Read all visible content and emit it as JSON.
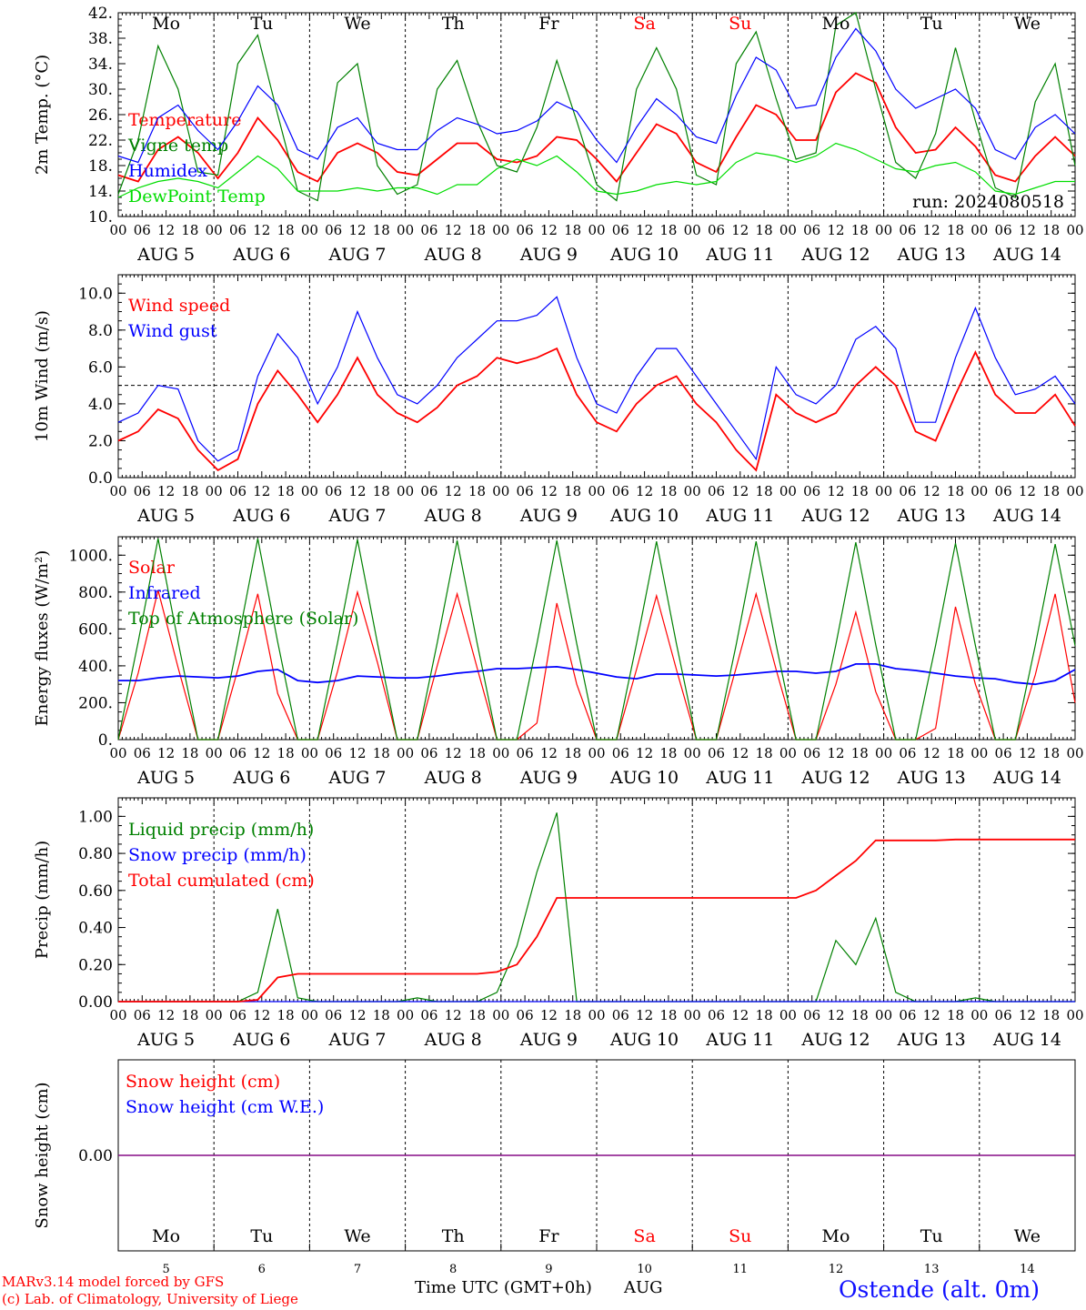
{
  "footer": {
    "credit_line1": "MARv3.14 model forced by GFS",
    "credit_line2": "(c) Lab. of Climatology, University of Liege",
    "x_axis_title": "Time UTC (GMT+0h)",
    "month": "AUG",
    "station": "Ostende (alt. 0m)"
  },
  "colors": {
    "red": "#ff0000",
    "blue": "#0000ff",
    "green": "#008000",
    "lightgreen": "#00dd00",
    "purple": "#800080",
    "weekend": "#ff0000",
    "weekday": "#000000"
  },
  "chart_data": [
    {
      "type": "line",
      "ylabel": "2m Temp. (°C)",
      "ylim": [
        10,
        42
      ],
      "y_ticks": [
        "42.",
        "38.",
        "34.",
        "30.",
        "26.",
        "22.",
        "18.",
        "14.",
        "10."
      ],
      "run_label": "run: 2024080518",
      "day_labels": [
        "Mo",
        "Tu",
        "We",
        "Th",
        "Fr",
        "Sa",
        "Su",
        "Mo",
        "Tu",
        "We"
      ],
      "weekend_flags": [
        false,
        false,
        false,
        false,
        false,
        true,
        true,
        false,
        false,
        false
      ],
      "date_labels": [
        "AUG  5",
        "AUG  6",
        "AUG  7",
        "AUG  8",
        "AUG  9",
        "AUG 10",
        "AUG 11",
        "AUG 12",
        "AUG 13",
        "AUG 14"
      ],
      "hour_ticks": [
        "00",
        "06",
        "12",
        "18"
      ],
      "x_hours_step": 6,
      "series": [
        {
          "name": "Temperature",
          "color": "#ff0000",
          "values": [
            16.5,
            15.5,
            20.5,
            22.5,
            20.0,
            16.0,
            20.0,
            25.5,
            22.0,
            17.0,
            15.5,
            20.0,
            21.5,
            20.0,
            17.0,
            16.5,
            19.0,
            21.5,
            21.5,
            19.0,
            18.5,
            19.5,
            22.5,
            22.0,
            19.0,
            15.5,
            20.0,
            24.5,
            23.0,
            18.5,
            17.0,
            22.5,
            27.5,
            26.0,
            22.0,
            22.0,
            29.5,
            32.5,
            31.0,
            24.0,
            20.0,
            20.5,
            24.0,
            21.0,
            16.5,
            15.5,
            19.5,
            22.5,
            19.5
          ]
        },
        {
          "name": "Vigne temp",
          "color": "#008000",
          "values": [
            13.5,
            22.0,
            36.8,
            30.0,
            17.0,
            16.5,
            34.0,
            38.5,
            26.0,
            14.0,
            12.5,
            31.0,
            34.0,
            18.0,
            13.5,
            15.0,
            30.0,
            34.5,
            25.0,
            18.0,
            17.0,
            24.0,
            34.5,
            25.0,
            15.0,
            12.5,
            30.0,
            36.5,
            30.0,
            16.5,
            15.0,
            34.0,
            39.0,
            28.5,
            19.0,
            20.0,
            40.0,
            42.0,
            30.0,
            18.5,
            16.0,
            23.0,
            36.5,
            25.0,
            14.5,
            13.0,
            28.0,
            34.0,
            18.0
          ]
        },
        {
          "name": "Humidex",
          "color": "#0000ff",
          "values": [
            19.5,
            18.5,
            25.5,
            27.5,
            23.5,
            20.5,
            25.0,
            30.5,
            27.5,
            20.5,
            19.0,
            24.0,
            25.5,
            21.5,
            20.5,
            20.5,
            23.5,
            25.5,
            24.5,
            23.0,
            23.5,
            25.0,
            28.0,
            26.5,
            22.0,
            18.5,
            24.0,
            28.5,
            26.0,
            22.5,
            21.5,
            29.0,
            35.0,
            33.0,
            27.0,
            27.5,
            35.0,
            39.5,
            36.0,
            30.0,
            27.0,
            28.5,
            30.0,
            27.0,
            20.5,
            19.0,
            24.0,
            26.0,
            23.0
          ]
        },
        {
          "name": "DewPoint Temp",
          "color": "#00dd00",
          "values": [
            13.0,
            14.5,
            15.5,
            16.0,
            15.5,
            14.5,
            17.0,
            19.5,
            17.5,
            14.0,
            14.0,
            14.0,
            14.5,
            14.0,
            14.5,
            14.5,
            13.5,
            15.0,
            15.0,
            17.5,
            19.0,
            18.0,
            19.5,
            17.0,
            14.0,
            13.5,
            14.0,
            15.0,
            15.5,
            15.0,
            15.5,
            18.5,
            20.0,
            19.5,
            18.5,
            19.5,
            21.5,
            20.5,
            19.0,
            17.5,
            17.0,
            18.0,
            18.5,
            17.0,
            14.0,
            13.5,
            14.5,
            15.5,
            15.5
          ]
        }
      ]
    },
    {
      "type": "line",
      "ylabel": "10m Wind (m/s)",
      "ylim": [
        0,
        11
      ],
      "y_ticks": [
        "10.0",
        "8.0",
        "6.0",
        "4.0",
        "2.0",
        "0.0"
      ],
      "reference_line": 5,
      "date_labels": [
        "AUG  5",
        "AUG  6",
        "AUG  7",
        "AUG  8",
        "AUG  9",
        "AUG 10",
        "AUG 11",
        "AUG 12",
        "AUG 13",
        "AUG 14"
      ],
      "hour_ticks": [
        "00",
        "06",
        "12",
        "18"
      ],
      "series": [
        {
          "name": "Wind speed",
          "color": "#ff0000",
          "values": [
            2.0,
            2.5,
            3.7,
            3.2,
            1.5,
            0.4,
            1.0,
            4.0,
            5.8,
            4.5,
            3.0,
            4.5,
            6.5,
            4.5,
            3.5,
            3.0,
            3.8,
            5.0,
            5.5,
            6.5,
            6.2,
            6.5,
            7.0,
            4.5,
            3.0,
            2.5,
            4.0,
            5.0,
            5.5,
            4.0,
            3.0,
            1.5,
            0.4,
            4.5,
            3.5,
            3.0,
            3.5,
            5.0,
            6.0,
            5.0,
            2.5,
            2.0,
            4.5,
            6.8,
            4.5,
            3.5,
            3.5,
            4.5,
            2.8
          ]
        },
        {
          "name": "Wind gust",
          "color": "#0000ff",
          "values": [
            3.0,
            3.5,
            5.0,
            4.8,
            2.0,
            0.9,
            1.5,
            5.5,
            7.8,
            6.5,
            4.0,
            6.0,
            9.0,
            6.5,
            4.5,
            4.0,
            5.0,
            6.5,
            7.5,
            8.5,
            8.5,
            8.8,
            9.8,
            6.5,
            4.0,
            3.5,
            5.5,
            7.0,
            7.0,
            5.5,
            4.0,
            2.5,
            1.0,
            6.0,
            4.5,
            4.0,
            5.0,
            7.5,
            8.2,
            7.0,
            3.0,
            3.0,
            6.5,
            9.2,
            6.5,
            4.5,
            4.8,
            5.5,
            4.0
          ]
        }
      ]
    },
    {
      "type": "line",
      "ylabel": "Energy fluxes (W/m²)",
      "ylim": [
        0,
        1100
      ],
      "y_ticks": [
        "1000.",
        "800.",
        "600.",
        "400.",
        "200.",
        "0."
      ],
      "date_labels": [
        "AUG  5",
        "AUG  6",
        "AUG  7",
        "AUG  8",
        "AUG  9",
        "AUG 10",
        "AUG 11",
        "AUG 12",
        "AUG 13",
        "AUG 14"
      ],
      "hour_ticks": [
        "00",
        "06",
        "12",
        "18"
      ],
      "series": [
        {
          "name": "Solar",
          "color": "#ff0000",
          "values": [
            0,
            360,
            810,
            390,
            0,
            0,
            380,
            790,
            250,
            0,
            0,
            370,
            800,
            420,
            0,
            0,
            400,
            790,
            390,
            0,
            0,
            90,
            740,
            300,
            0,
            0,
            380,
            780,
            380,
            0,
            0,
            390,
            790,
            380,
            0,
            0,
            300,
            690,
            260,
            0,
            0,
            60,
            720,
            300,
            0,
            0,
            350,
            790,
            200
          ]
        },
        {
          "name": "Infrared",
          "color": "#0000ff",
          "values": [
            320,
            320,
            335,
            345,
            340,
            335,
            345,
            370,
            380,
            320,
            310,
            320,
            345,
            340,
            335,
            335,
            345,
            360,
            370,
            385,
            385,
            390,
            395,
            380,
            360,
            340,
            330,
            355,
            355,
            350,
            345,
            350,
            360,
            370,
            370,
            360,
            370,
            410,
            410,
            385,
            375,
            360,
            345,
            335,
            330,
            310,
            300,
            320,
            380
          ]
        },
        {
          "name": "Top of Atmosphere (Solar)",
          "color": "#008000",
          "values": [
            0,
            530,
            1090,
            530,
            0,
            0,
            530,
            1090,
            530,
            0,
            0,
            525,
            1085,
            525,
            0,
            0,
            525,
            1080,
            525,
            0,
            0,
            520,
            1080,
            520,
            0,
            0,
            520,
            1075,
            520,
            0,
            0,
            515,
            1075,
            515,
            0,
            0,
            515,
            1070,
            515,
            0,
            0,
            510,
            1065,
            510,
            0,
            0,
            510,
            1060,
            510
          ]
        }
      ]
    },
    {
      "type": "line",
      "ylabel": "Precip (mm/h)",
      "ylim": [
        0,
        1.1
      ],
      "y_ticks": [
        "1.00",
        "0.80",
        "0.60",
        "0.40",
        "0.20",
        "0.00"
      ],
      "date_labels": [
        "AUG  5",
        "AUG  6",
        "AUG  7",
        "AUG  8",
        "AUG  9",
        "AUG 10",
        "AUG 11",
        "AUG 12",
        "AUG 13",
        "AUG 14"
      ],
      "hour_ticks": [
        "00",
        "06",
        "12",
        "18"
      ],
      "series": [
        {
          "name": "Liquid precip (mm/h)",
          "color": "#008000",
          "values": [
            0,
            0,
            0,
            0,
            0,
            0,
            0,
            0.05,
            0.5,
            0.02,
            0,
            0,
            0,
            0,
            0,
            0.02,
            0,
            0,
            0,
            0.05,
            0.3,
            0.7,
            1.02,
            0,
            0,
            0,
            0,
            0,
            0,
            0,
            0,
            0,
            0,
            0,
            0,
            0,
            0.33,
            0.2,
            0.45,
            0.05,
            0,
            0,
            0,
            0.02,
            0,
            0,
            0,
            0,
            0
          ]
        },
        {
          "name": "Snow precip (mm/h)",
          "color": "#0000ff",
          "values": [
            0,
            0,
            0,
            0,
            0,
            0,
            0,
            0,
            0,
            0,
            0,
            0,
            0,
            0,
            0,
            0,
            0,
            0,
            0,
            0,
            0,
            0,
            0,
            0,
            0,
            0,
            0,
            0,
            0,
            0,
            0,
            0,
            0,
            0,
            0,
            0,
            0,
            0,
            0,
            0,
            0,
            0,
            0,
            0,
            0,
            0,
            0,
            0,
            0
          ]
        },
        {
          "name": "Total cumulated (cm)",
          "color": "#ff0000",
          "values": [
            0,
            0,
            0,
            0,
            0,
            0,
            0,
            0.01,
            0.13,
            0.15,
            0.15,
            0.15,
            0.15,
            0.15,
            0.15,
            0.15,
            0.15,
            0.15,
            0.15,
            0.16,
            0.2,
            0.35,
            0.56,
            0.56,
            0.56,
            0.56,
            0.56,
            0.56,
            0.56,
            0.56,
            0.56,
            0.56,
            0.56,
            0.56,
            0.56,
            0.6,
            0.68,
            0.76,
            0.87,
            0.87,
            0.87,
            0.87,
            0.875,
            0.875,
            0.875,
            0.875,
            0.875,
            0.875,
            0.875
          ]
        }
      ]
    },
    {
      "type": "line",
      "ylabel": "Snow height (cm)",
      "ylim": [
        -1,
        1
      ],
      "y_ticks": [
        "0.00"
      ],
      "day_labels": [
        "Mo",
        "Tu",
        "We",
        "Th",
        "Fr",
        "Sa",
        "Su",
        "Mo",
        "Tu",
        "We"
      ],
      "weekend_flags": [
        false,
        false,
        false,
        false,
        false,
        true,
        true,
        false,
        false,
        false
      ],
      "day_numbers": [
        "5",
        "6",
        "7",
        "8",
        "9",
        "10",
        "11",
        "12",
        "13",
        "14"
      ],
      "series": [
        {
          "name": "Snow height (cm)",
          "color": "#ff0000",
          "values": [
            0,
            0,
            0,
            0,
            0,
            0,
            0,
            0,
            0,
            0,
            0,
            0,
            0,
            0,
            0,
            0,
            0,
            0,
            0,
            0,
            0,
            0,
            0,
            0,
            0,
            0,
            0,
            0,
            0,
            0,
            0,
            0,
            0,
            0,
            0,
            0,
            0,
            0,
            0,
            0,
            0,
            0,
            0,
            0,
            0,
            0,
            0,
            0,
            0
          ]
        },
        {
          "name": "Snow height (cm W.E.)",
          "color": "#0000ff",
          "values": [
            0,
            0,
            0,
            0,
            0,
            0,
            0,
            0,
            0,
            0,
            0,
            0,
            0,
            0,
            0,
            0,
            0,
            0,
            0,
            0,
            0,
            0,
            0,
            0,
            0,
            0,
            0,
            0,
            0,
            0,
            0,
            0,
            0,
            0,
            0,
            0,
            0,
            0,
            0,
            0,
            0,
            0,
            0,
            0,
            0,
            0,
            0,
            0,
            0
          ]
        }
      ]
    }
  ]
}
